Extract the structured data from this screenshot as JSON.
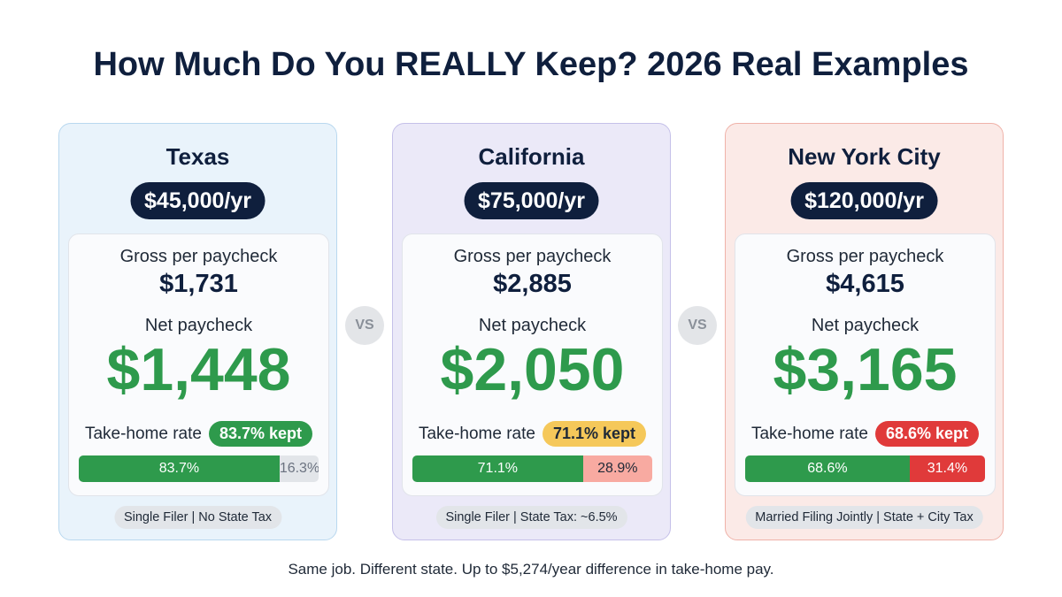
{
  "title": "How Much Do You REALLY Keep? 2026 Real Examples",
  "cards": [
    {
      "name": "Texas",
      "salary": "$45,000/yr",
      "gross_label": "Gross per paycheck",
      "gross": "$1,731",
      "net_label": "Net paycheck",
      "net": "$1,448",
      "rate_label": "Take-home rate",
      "rate_badge": "83.7% kept",
      "bar": [
        {
          "value": 83.7,
          "label": "83.7%"
        },
        {
          "value": 16.3,
          "label": "16.3%"
        }
      ],
      "note": "Single Filer | No State Tax",
      "colors": {
        "bg": "#e9f3fb",
        "border": "#b9d8ef",
        "badge": "#2e9a4c",
        "badge_text": "#ffffff",
        "kept": "#2e9a4c",
        "rest": "#e2e5e9",
        "rest_text": "#6b7280"
      }
    },
    {
      "name": "California",
      "salary": "$75,000/yr",
      "gross_label": "Gross per paycheck",
      "gross": "$2,885",
      "net_label": "Net paycheck",
      "net": "$2,050",
      "rate_label": "Take-home rate",
      "rate_badge": "71.1% kept",
      "bar": [
        {
          "value": 71.1,
          "label": "71.1%"
        },
        {
          "value": 28.9,
          "label": "28.9%"
        }
      ],
      "note": "Single Filer | State Tax: ~6.5%",
      "colors": {
        "bg": "#ebe9f8",
        "border": "#c5c0e9",
        "badge": "#f5c85a",
        "badge_text": "#1f2937",
        "kept": "#2e9a4c",
        "rest": "#f8aaa1",
        "rest_text": "#1f2937"
      }
    },
    {
      "name": "New York City",
      "salary": "$120,000/yr",
      "gross_label": "Gross per paycheck",
      "gross": "$4,615",
      "net_label": "Net paycheck",
      "net": "$3,165",
      "rate_label": "Take-home rate",
      "rate_badge": "68.6% kept",
      "bar": [
        {
          "value": 68.6,
          "label": "68.6%"
        },
        {
          "value": 31.4,
          "label": "31.4%"
        }
      ],
      "note": "Married Filing Jointly | State + City Tax",
      "colors": {
        "bg": "#fbeae7",
        "border": "#efb2a9",
        "badge": "#e03a3a",
        "badge_text": "#ffffff",
        "kept": "#2e9a4c",
        "rest": "#e03a3a",
        "rest_text": "#ffffff"
      }
    }
  ],
  "vs": [
    "VS",
    "VS"
  ],
  "footer": "Same job. Different state. Up to $5,274/year difference in take-home pay."
}
